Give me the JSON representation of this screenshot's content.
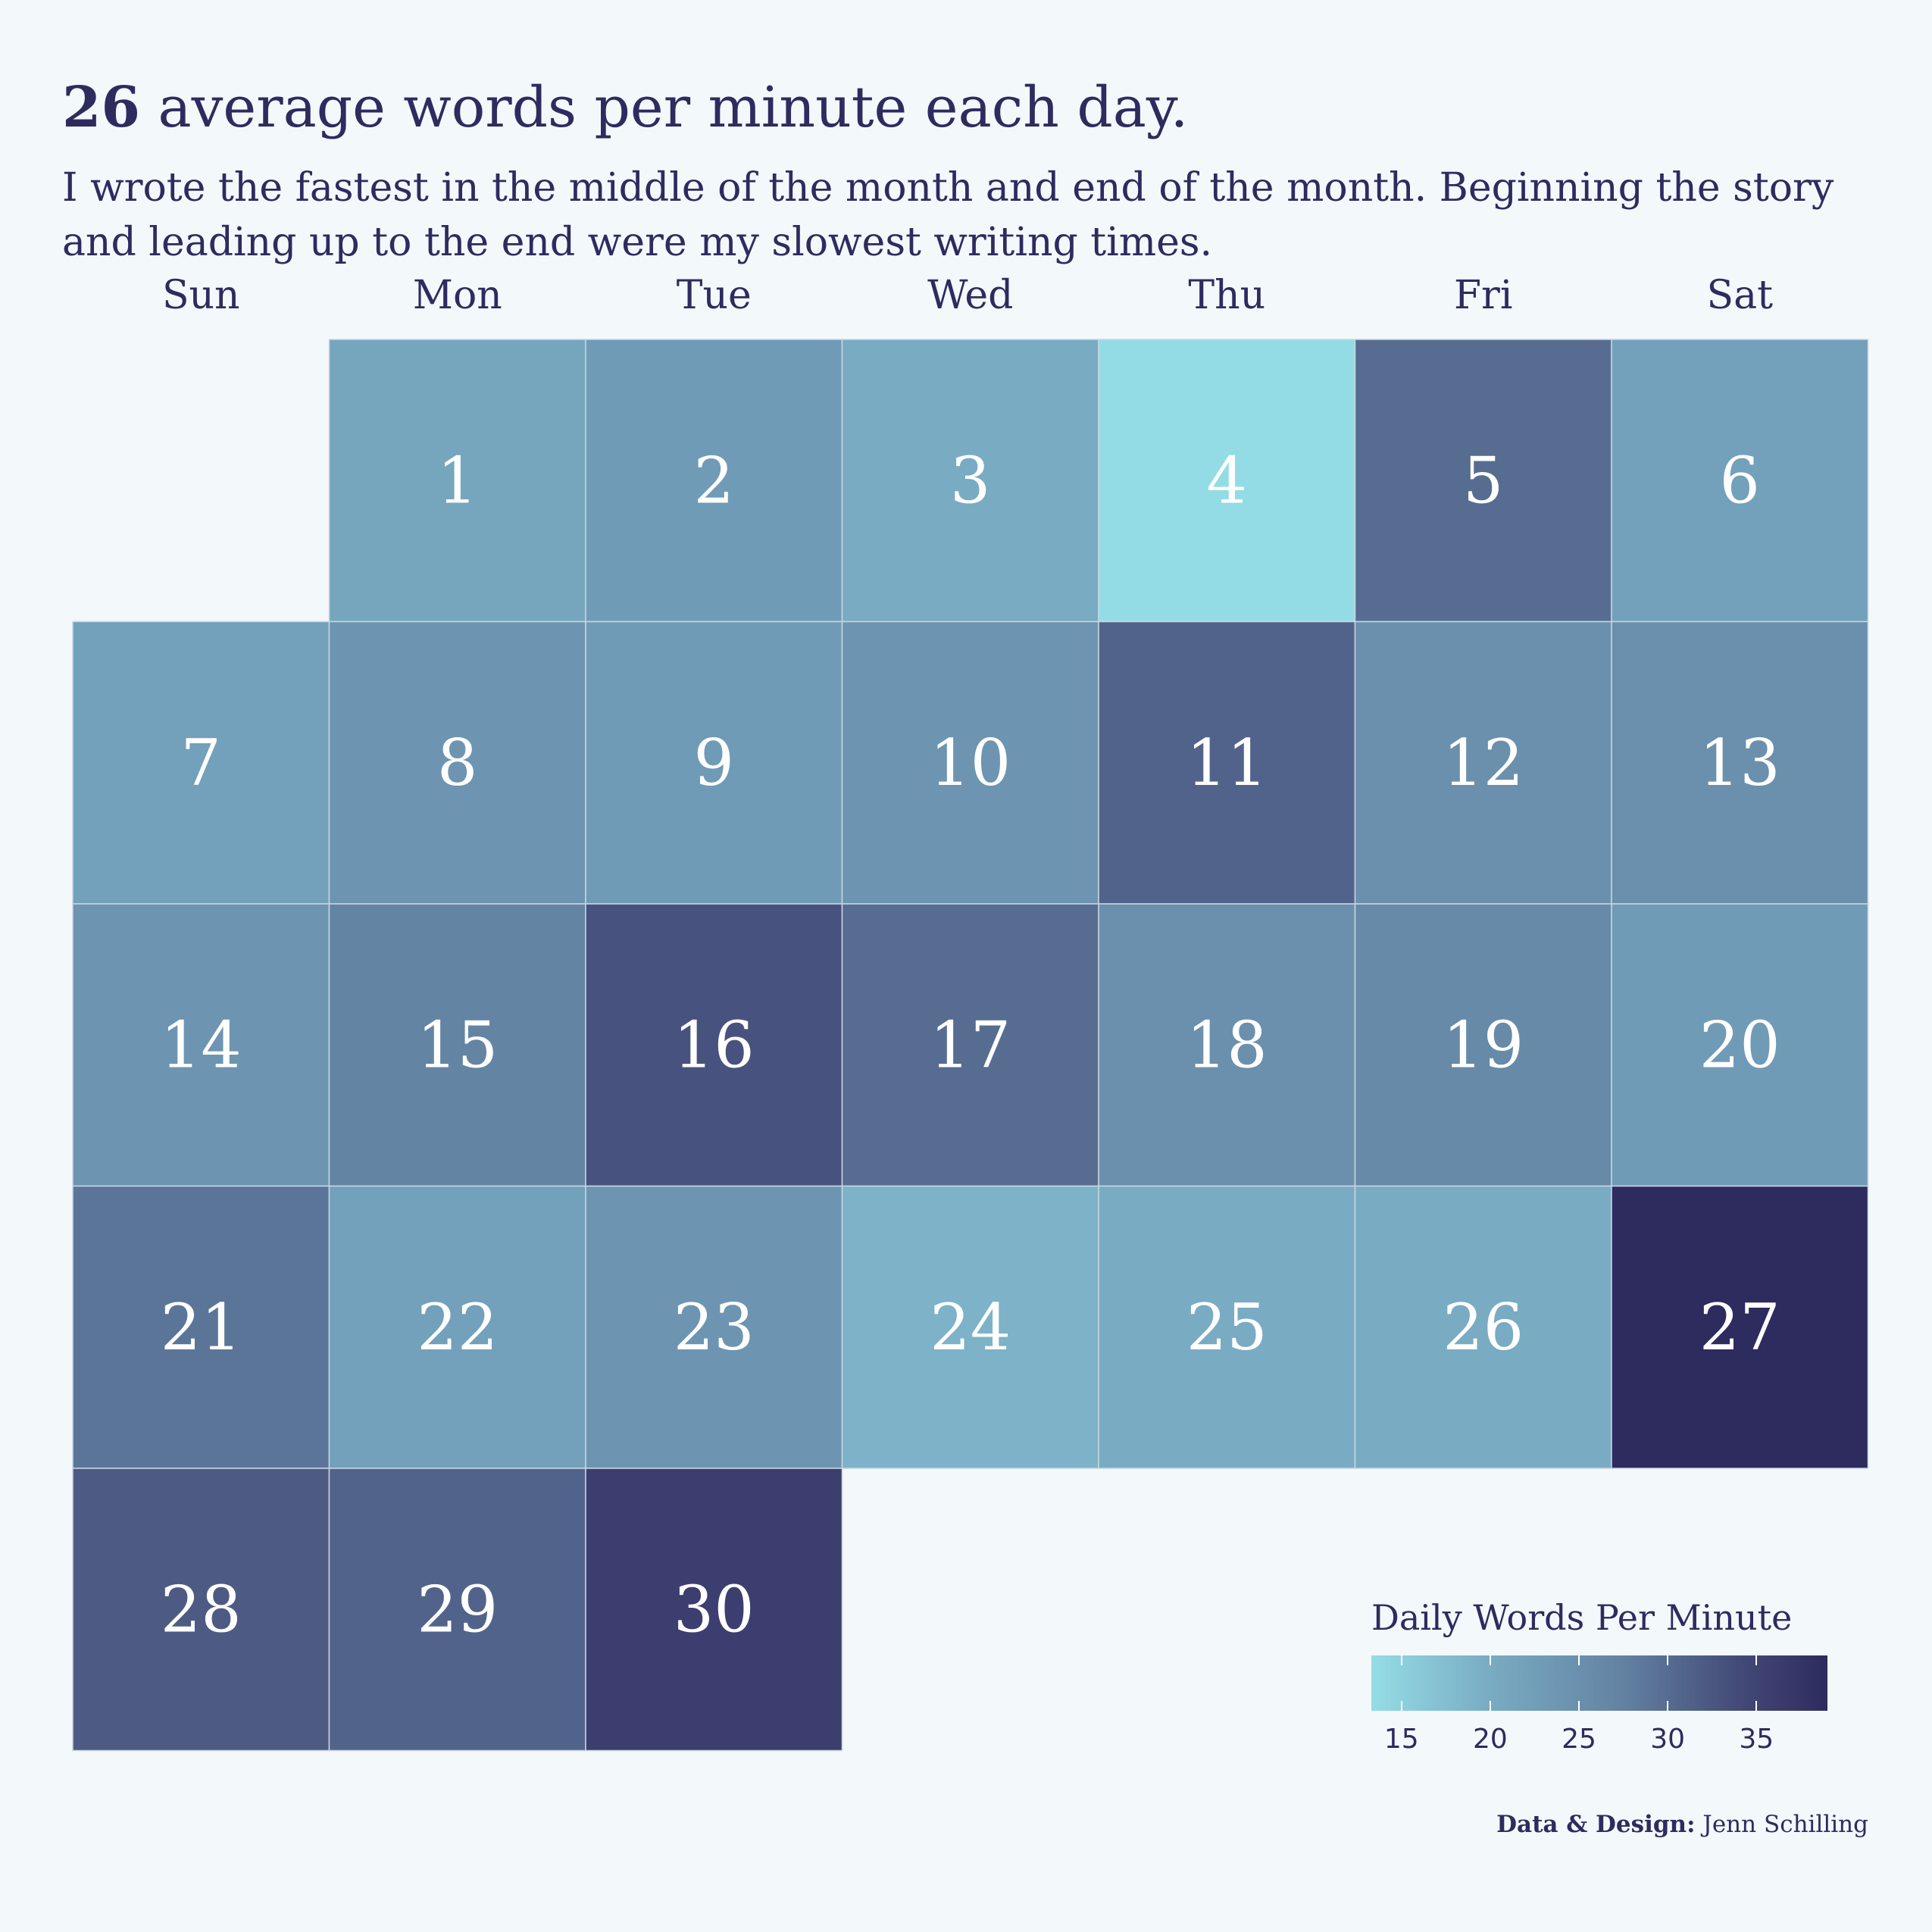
{
  "title": {
    "bold_value": "26",
    "rest": " average words per minute each day."
  },
  "subtitle": "I wrote the fastest in the middle of the month and end of the month. Beginning the story and leading up to the end were my slowest writing times.",
  "legend": {
    "title": "Daily Words Per Minute",
    "ticks": [
      15,
      20,
      25,
      30,
      35
    ],
    "range": [
      13.3,
      39
    ],
    "colors": [
      "#95dde6",
      "#7aadc4",
      "#6382a2",
      "#444b78",
      "#2e2b5f"
    ]
  },
  "credit": {
    "label": "Data & Design:",
    "name": "Jenn Schilling"
  },
  "chart_data": {
    "type": "heatmap",
    "title": "26 average words per minute each day.",
    "days_of_week": [
      "Sun",
      "Mon",
      "Tue",
      "Wed",
      "Thu",
      "Fri",
      "Sat"
    ],
    "first_day_index": 1,
    "colorbar_title": "Daily Words Per Minute",
    "colorbar_ticks": [
      15,
      20,
      25,
      30,
      35
    ],
    "days": [
      {
        "day": 1,
        "wpm": 21
      },
      {
        "day": 2,
        "wpm": 23
      },
      {
        "day": 3,
        "wpm": 20
      },
      {
        "day": 4,
        "wpm": 13.5
      },
      {
        "day": 5,
        "wpm": 30
      },
      {
        "day": 6,
        "wpm": 22
      },
      {
        "day": 7,
        "wpm": 22
      },
      {
        "day": 8,
        "wpm": 24
      },
      {
        "day": 9,
        "wpm": 23
      },
      {
        "day": 10,
        "wpm": 24
      },
      {
        "day": 11,
        "wpm": 31
      },
      {
        "day": 12,
        "wpm": 25
      },
      {
        "day": 13,
        "wpm": 25
      },
      {
        "day": 14,
        "wpm": 24
      },
      {
        "day": 15,
        "wpm": 27
      },
      {
        "day": 16,
        "wpm": 33
      },
      {
        "day": 17,
        "wpm": 30
      },
      {
        "day": 18,
        "wpm": 25
      },
      {
        "day": 19,
        "wpm": 26
      },
      {
        "day": 20,
        "wpm": 23
      },
      {
        "day": 21,
        "wpm": 29
      },
      {
        "day": 22,
        "wpm": 22
      },
      {
        "day": 23,
        "wpm": 24
      },
      {
        "day": 24,
        "wpm": 19
      },
      {
        "day": 25,
        "wpm": 20
      },
      {
        "day": 26,
        "wpm": 20
      },
      {
        "day": 27,
        "wpm": 39
      },
      {
        "day": 28,
        "wpm": 32
      },
      {
        "day": 29,
        "wpm": 31
      },
      {
        "day": 30,
        "wpm": 36
      }
    ]
  }
}
